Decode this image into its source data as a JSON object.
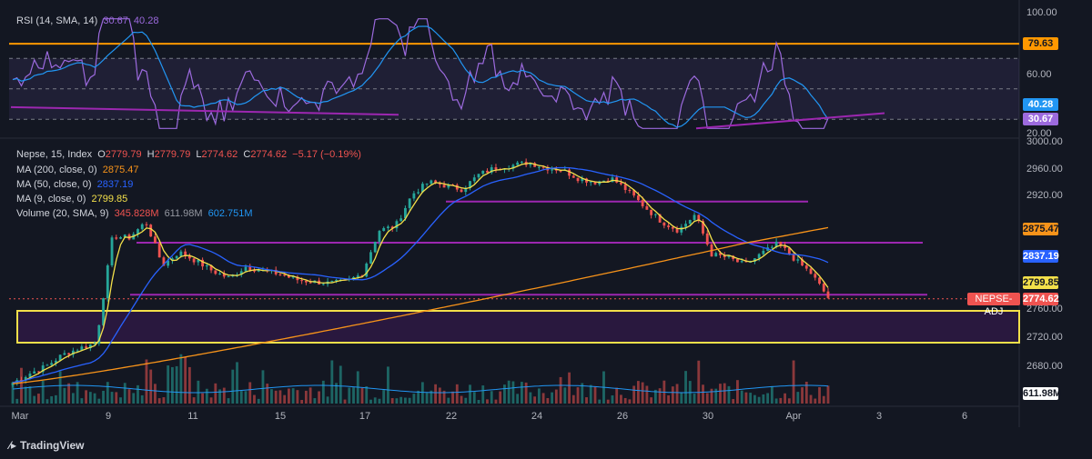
{
  "colors": {
    "background": "#131722",
    "rsi": "#9c6ade",
    "rsi_sma": "#2196f3",
    "up": "#26a69a",
    "down": "#ef5350",
    "ma200": "#f7931a",
    "ma50": "#2962ff",
    "ma9": "#f3e04a",
    "purple_line": "#9c27b0",
    "level_orange": "#ff9800"
  },
  "rsi_panel": {
    "legend": {
      "name": "RSI (14, SMA, 14)",
      "rsi": "30.67",
      "sma": "40.28"
    },
    "axis_labels": [
      "100.00",
      "60.00",
      "20.00"
    ],
    "level_badge": "79.63",
    "sma_badge": "40.28",
    "rsi_badge": "30.67"
  },
  "price_panel": {
    "legend": {
      "symbol": "Nepse, 15, Index",
      "o_label": "O",
      "o": "2779.79",
      "h_label": "H",
      "h": "2779.79",
      "l_label": "L",
      "l": "2774.62",
      "c_label": "C",
      "c": "2774.62",
      "change": "−5.17 (−0.19%)",
      "ma200": "MA (200, close, 0)",
      "ma200_val": "2875.47",
      "ma50": "MA (50, close, 0)",
      "ma50_val": "2837.19",
      "ma9": "MA (9, close, 0)",
      "ma9_val": "2799.85",
      "volume": "Volume (20, SMA, 9)",
      "vol1": "345.828M",
      "vol2": "611.98M",
      "vol3": "602.751M"
    },
    "axis_labels": [
      "3000.00",
      "2960.00",
      "2920.00",
      "2760.00",
      "2720.00",
      "2680.00"
    ],
    "badges": {
      "ma200": "2875.47",
      "ma50": "2837.19",
      "ma9": "2799.85",
      "price": "2774.62",
      "price_tag": "NEPSE-ADJ",
      "volume": "611.98M"
    }
  },
  "time_axis": [
    "Mar",
    "9",
    "11",
    "15",
    "17",
    "22",
    "24",
    "26",
    "30",
    "Apr",
    "3",
    "6"
  ],
  "branding": "TradingView",
  "chart_data": {
    "type": "candlestick",
    "symbol": "Nepse, 15, Index",
    "last": {
      "open": 2779.79,
      "high": 2779.79,
      "low": 2774.62,
      "close": 2774.62,
      "change": -5.17,
      "change_pct": -0.19
    },
    "indicators": {
      "ma200": 2875.47,
      "ma50": 2837.19,
      "ma9": 2799.85,
      "rsi": 30.67,
      "rsi_sma": 40.28,
      "volume": "611.98M"
    },
    "x_labels": [
      "Mar",
      "9",
      "11",
      "15",
      "17",
      "22",
      "24",
      "26",
      "30",
      "Apr",
      "3",
      "6"
    ],
    "close_approx": [
      2657,
      2670,
      2680,
      2696,
      2705,
      2712,
      2860,
      2858,
      2880,
      2820,
      2838,
      2826,
      2812,
      2802,
      2818,
      2812,
      2808,
      2800,
      2797,
      2795,
      2797,
      2808,
      2868,
      2874,
      2918,
      2935,
      2930,
      2925,
      2945,
      2955,
      2958,
      2962,
      2955,
      2952,
      2940,
      2935,
      2940,
      2922,
      2900,
      2880,
      2868,
      2890,
      2835,
      2830,
      2820,
      2836,
      2850,
      2828,
      2808,
      2775
    ],
    "price_ylim": [
      2640,
      3005
    ],
    "horizontal_levels": {
      "price": [
        2908,
        2851,
        2779
      ],
      "rsi": [
        79.63
      ]
    },
    "rsi_ylim": [
      20,
      100
    ]
  }
}
